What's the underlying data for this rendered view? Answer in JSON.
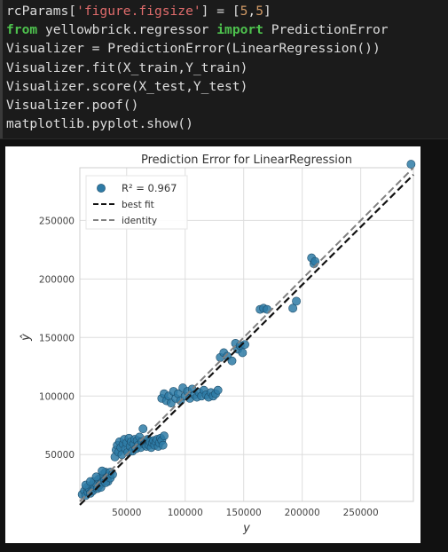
{
  "code_cell": {
    "lines": [
      {
        "tokens": [
          {
            "t": "rcParams[",
            "c": ""
          },
          {
            "t": "'figure.figsize'",
            "c": "str"
          },
          {
            "t": "] = [",
            "c": ""
          },
          {
            "t": "5",
            "c": "num"
          },
          {
            "t": ",",
            "c": ""
          },
          {
            "t": "5",
            "c": "num"
          },
          {
            "t": "]",
            "c": ""
          }
        ]
      },
      {
        "tokens": [
          {
            "t": "from",
            "c": "kw"
          },
          {
            "t": " yellowbrick.regressor ",
            "c": ""
          },
          {
            "t": "import",
            "c": "kw"
          },
          {
            "t": " PredictionError",
            "c": ""
          }
        ]
      },
      {
        "tokens": [
          {
            "t": "Visualizer = PredictionError(LinearRegression())",
            "c": ""
          }
        ]
      },
      {
        "tokens": [
          {
            "t": "Visualizer.fit(X_train,Y_train)",
            "c": ""
          }
        ]
      },
      {
        "tokens": [
          {
            "t": "Visualizer.score(X_test,Y_test)",
            "c": ""
          }
        ]
      },
      {
        "tokens": [
          {
            "t": "Visualizer.poof()",
            "c": ""
          }
        ]
      },
      {
        "tokens": [
          {
            "t": "matplotlib.pyplot.show()",
            "c": ""
          }
        ]
      }
    ]
  },
  "chart_data": {
    "type": "scatter",
    "title": "Prediction Error for LinearRegression",
    "xlabel": "y",
    "ylabel": "ŷ",
    "xlim": [
      10000,
      295000
    ],
    "ylim": [
      10000,
      295000
    ],
    "x_ticks": [
      50000,
      100000,
      150000,
      200000,
      250000
    ],
    "y_ticks": [
      50000,
      100000,
      150000,
      200000,
      250000
    ],
    "grid": true,
    "legend_position": "top-left",
    "legend": [
      {
        "label": "R² = 0.967",
        "kind": "marker",
        "color": "#2e7ba6"
      },
      {
        "label": "best fit",
        "kind": "line",
        "color": "#111111"
      },
      {
        "label": "identity",
        "kind": "line",
        "color": "#808080"
      }
    ],
    "best_fit": {
      "x": [
        10000,
        295000
      ],
      "y": [
        7000,
        289000
      ]
    },
    "identity": {
      "x": [
        10000,
        295000
      ],
      "y": [
        10000,
        295000
      ]
    },
    "points": [
      [
        12000,
        16000
      ],
      [
        14000,
        19000
      ],
      [
        15000,
        15000
      ],
      [
        16000,
        22000
      ],
      [
        17000,
        18000
      ],
      [
        18000,
        21000
      ],
      [
        19000,
        17000
      ],
      [
        20000,
        24000
      ],
      [
        21000,
        19000
      ],
      [
        22000,
        27000
      ],
      [
        23000,
        22000
      ],
      [
        24000,
        25000
      ],
      [
        25000,
        21000
      ],
      [
        26000,
        29000
      ],
      [
        27000,
        24000
      ],
      [
        28000,
        30000
      ],
      [
        29000,
        26000
      ],
      [
        30000,
        33000
      ],
      [
        31000,
        28000
      ],
      [
        32000,
        35000
      ],
      [
        33000,
        30000
      ],
      [
        34000,
        27000
      ],
      [
        35000,
        32000
      ],
      [
        36000,
        35000
      ],
      [
        15000,
        24000
      ],
      [
        19000,
        27000
      ],
      [
        24000,
        31000
      ],
      [
        29000,
        36000
      ],
      [
        28000,
        22000
      ],
      [
        32000,
        26000
      ],
      [
        36000,
        30000
      ],
      [
        38000,
        33000
      ],
      [
        40000,
        48000
      ],
      [
        41000,
        54000
      ],
      [
        42000,
        58000
      ],
      [
        43000,
        52000
      ],
      [
        44000,
        61000
      ],
      [
        45000,
        56000
      ],
      [
        46000,
        50000
      ],
      [
        47000,
        59000
      ],
      [
        48000,
        63000
      ],
      [
        49000,
        55000
      ],
      [
        50000,
        60000
      ],
      [
        51000,
        52000
      ],
      [
        52000,
        64000
      ],
      [
        53000,
        57000
      ],
      [
        54000,
        61000
      ],
      [
        55000,
        53000
      ],
      [
        56000,
        59000
      ],
      [
        57000,
        63000
      ],
      [
        58000,
        55000
      ],
      [
        59000,
        62000
      ],
      [
        60000,
        58000
      ],
      [
        61000,
        65000
      ],
      [
        62000,
        56000
      ],
      [
        63000,
        61000
      ],
      [
        64000,
        72000
      ],
      [
        65000,
        59000
      ],
      [
        66000,
        62000
      ],
      [
        67000,
        57000
      ],
      [
        68000,
        63000
      ],
      [
        69000,
        58000
      ],
      [
        70000,
        61000
      ],
      [
        71000,
        56000
      ],
      [
        72000,
        60000
      ],
      [
        73000,
        62000
      ],
      [
        74000,
        58000
      ],
      [
        75000,
        61000
      ],
      [
        76000,
        63000
      ],
      [
        77000,
        57000
      ],
      [
        78000,
        60000
      ],
      [
        79000,
        64000
      ],
      [
        80000,
        62000
      ],
      [
        81000,
        58000
      ],
      [
        82000,
        66000
      ],
      [
        80000,
        98000
      ],
      [
        82000,
        102000
      ],
      [
        84000,
        96000
      ],
      [
        86000,
        100000
      ],
      [
        88000,
        94000
      ],
      [
        90000,
        104000
      ],
      [
        92000,
        98000
      ],
      [
        94000,
        102000
      ],
      [
        96000,
        96000
      ],
      [
        98000,
        107000
      ],
      [
        100000,
        100000
      ],
      [
        102000,
        104000
      ],
      [
        104000,
        98000
      ],
      [
        106000,
        106000
      ],
      [
        108000,
        101000
      ],
      [
        110000,
        99000
      ],
      [
        112000,
        103000
      ],
      [
        114000,
        100000
      ],
      [
        116000,
        105000
      ],
      [
        118000,
        101000
      ],
      [
        120000,
        99000
      ],
      [
        122000,
        103000
      ],
      [
        124000,
        100000
      ],
      [
        126000,
        102000
      ],
      [
        128000,
        105000
      ],
      [
        130000,
        133000
      ],
      [
        133000,
        137000
      ],
      [
        136000,
        134000
      ],
      [
        140000,
        130000
      ],
      [
        143000,
        145000
      ],
      [
        145000,
        140000
      ],
      [
        147000,
        143000
      ],
      [
        149000,
        137000
      ],
      [
        151000,
        144000
      ],
      [
        164000,
        174000
      ],
      [
        167000,
        175000
      ],
      [
        170000,
        174000
      ],
      [
        192000,
        175000
      ],
      [
        195000,
        181000
      ],
      [
        208000,
        218000
      ],
      [
        210000,
        213000
      ],
      [
        211000,
        215000
      ],
      [
        293000,
        298000
      ]
    ]
  }
}
